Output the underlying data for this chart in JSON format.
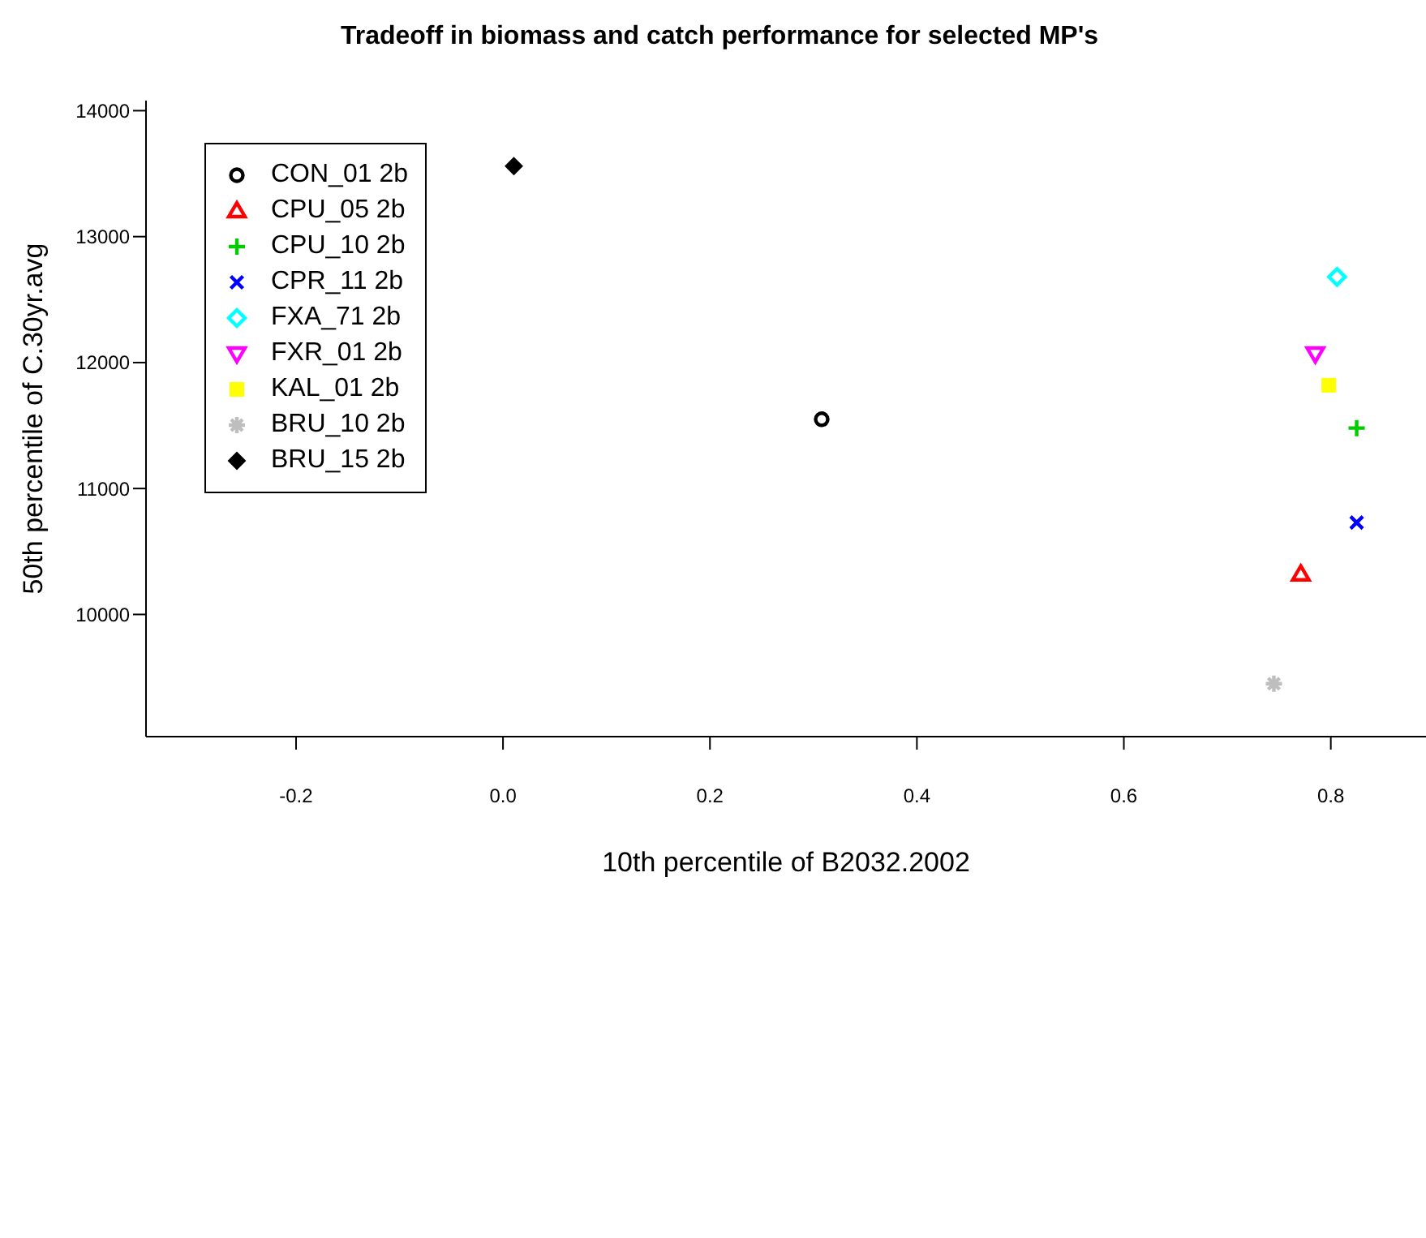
{
  "chart_data": {
    "type": "scatter",
    "title": "Tradeoff in biomass and catch performance for selected MP's",
    "xlabel": "10th percentile of B2032.2002",
    "ylabel": "50th percentile of C.30yr.avg",
    "xlim": [
      -0.345,
      0.892
    ],
    "ylim": [
      9030,
      14080
    ],
    "xticks": [
      {
        "value": -0.2,
        "label": "-0.2"
      },
      {
        "value": 0,
        "label": "0.0"
      },
      {
        "value": 0.2,
        "label": "0.2"
      },
      {
        "value": 0.4,
        "label": "0.4"
      },
      {
        "value": 0.6,
        "label": "0.6"
      },
      {
        "value": 0.8,
        "label": "0.8"
      }
    ],
    "yticks": [
      10000,
      11000,
      12000,
      13000,
      14000
    ],
    "grid": false,
    "legend": "top left",
    "series": [
      {
        "name": "CON_01 2b",
        "color": "#000000",
        "marker": "circle",
        "x": [
          0.308
        ],
        "values": [
          11550
        ]
      },
      {
        "name": "CPU_05 2b",
        "color": "#ff0000",
        "marker": "triangle",
        "x": [
          0.771
        ],
        "values": [
          10320
        ]
      },
      {
        "name": "CPU_10 2b",
        "color": "#00cd00",
        "marker": "cross",
        "x": [
          0.825
        ],
        "values": [
          11480
        ]
      },
      {
        "name": "CPR_11 2b",
        "color": "#0000ff",
        "marker": "x",
        "x": [
          0.825
        ],
        "values": [
          10730
        ]
      },
      {
        "name": "FXA_71 2b",
        "color": "#00ffff",
        "marker": "diamond",
        "x": [
          0.806
        ],
        "values": [
          12680
        ]
      },
      {
        "name": "FXR_01 2b",
        "color": "#ff00ff",
        "marker": "triangle-down",
        "x": [
          0.785
        ],
        "values": [
          12070
        ]
      },
      {
        "name": "KAL_01 2b",
        "color": "#ffff00",
        "marker": "square",
        "x": [
          0.798
        ],
        "values": [
          11820
        ]
      },
      {
        "name": "BRU_10 2b",
        "color": "#bebebe",
        "x": [
          0.745
        ],
        "values": [
          9450
        ]
      },
      {
        "name": "BRU_15 2b",
        "color": "#000000",
        "marker": "diamond-filled",
        "x": [
          0.0105
        ],
        "values": [
          13560
        ]
      }
    ]
  }
}
